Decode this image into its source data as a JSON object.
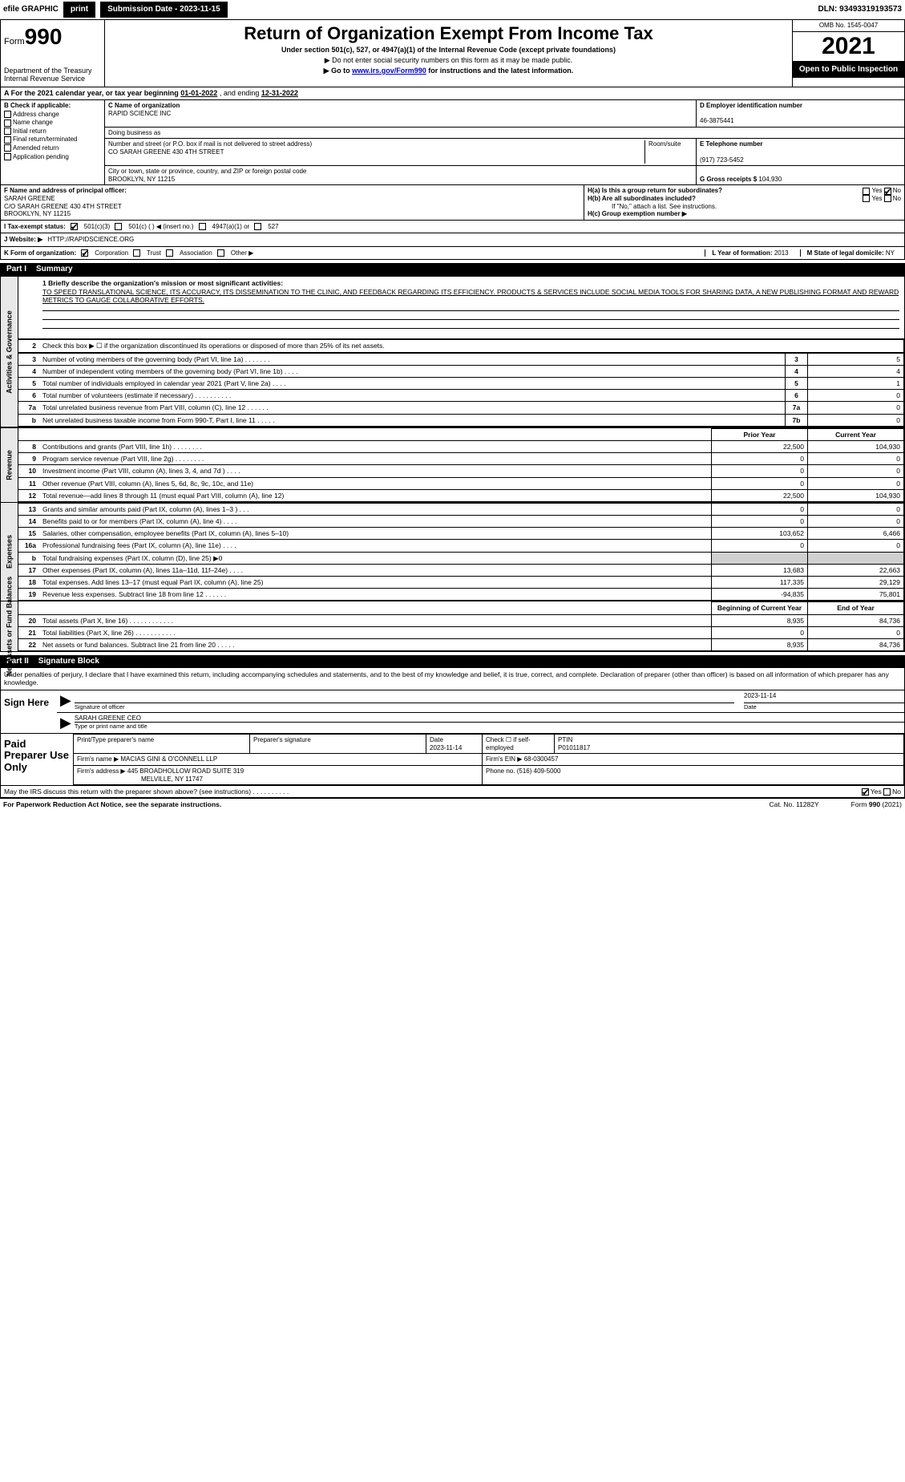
{
  "topbar": {
    "efile_label": "efile GRAPHIC",
    "print_btn": "print",
    "submission_label": "Submission Date - 2023-11-15",
    "dln": "DLN: 93493319193573"
  },
  "header": {
    "form_prefix": "Form",
    "form_number": "990",
    "dept": "Department of the Treasury",
    "irs": "Internal Revenue Service",
    "title": "Return of Organization Exempt From Income Tax",
    "subtitle": "Under section 501(c), 527, or 4947(a)(1) of the Internal Revenue Code (except private foundations)",
    "note1": "▶ Do not enter social security numbers on this form as it may be made public.",
    "note2_prefix": "▶ Go to ",
    "note2_link": "www.irs.gov/Form990",
    "note2_suffix": " for instructions and the latest information.",
    "omb": "OMB No. 1545-0047",
    "year": "2021",
    "open_public": "Open to Public Inspection"
  },
  "period": {
    "label_a": "A For the 2021 calendar year, or tax year beginning ",
    "begin": "01-01-2022",
    "mid": " , and ending ",
    "end": "12-31-2022"
  },
  "sectionB": {
    "label": "B Check if applicable:",
    "items": [
      "Address change",
      "Name change",
      "Initial return",
      "Final return/terminated",
      "Amended return",
      "Application pending"
    ]
  },
  "sectionC": {
    "name_label": "C Name of organization",
    "name": "RAPID SCIENCE INC",
    "dba_label": "Doing business as",
    "dba": "",
    "addr_label": "Number and street (or P.O. box if mail is not delivered to street address)",
    "room_label": "Room/suite",
    "addr": "CO SARAH GREENE 430 4TH STREET",
    "city_label": "City or town, state or province, country, and ZIP or foreign postal code",
    "city": "BROOKLYN, NY  11215"
  },
  "sectionD": {
    "label": "D Employer identification number",
    "ein": "46-3875441"
  },
  "sectionE": {
    "label": "E Telephone number",
    "phone": "(917) 723-5452"
  },
  "sectionG": {
    "label": "G Gross receipts $",
    "amount": "104,930"
  },
  "sectionF": {
    "label": "F Name and address of principal officer:",
    "name": "SARAH GREENE",
    "addr1": "C/O SARAH GREENE 430 4TH STREET",
    "addr2": "BROOKLYN, NY  11215"
  },
  "sectionH": {
    "ha_label": "H(a)  Is this a group return for subordinates?",
    "ha_yes": "Yes",
    "ha_no": "No",
    "hb_label": "H(b)  Are all subordinates included?",
    "hb_yes": "Yes",
    "hb_no": "No",
    "hb_note": "If \"No,\" attach a list. See instructions.",
    "hc_label": "H(c)  Group exemption number ▶"
  },
  "sectionI": {
    "label": "I   Tax-exempt status:",
    "opt1": "501(c)(3)",
    "opt2": "501(c) (    ) ◀ (insert no.)",
    "opt3": "4947(a)(1) or",
    "opt4": "527"
  },
  "sectionJ": {
    "label": "J   Website: ▶",
    "url": "HTTP://RAPIDSCIENCE.ORG"
  },
  "sectionK": {
    "label": "K Form of organization:",
    "opts": [
      "Corporation",
      "Trust",
      "Association",
      "Other ▶"
    ]
  },
  "sectionL": {
    "label": "L Year of formation:",
    "year": "2013"
  },
  "sectionM": {
    "label": "M State of legal domicile:",
    "state": "NY"
  },
  "part1": {
    "header_num": "Part I",
    "header_title": "Summary",
    "line1_label": "1  Briefly describe the organization's mission or most significant activities:",
    "line1_text": "TO SPEED TRANSLATIONAL SCIENCE, ITS ACCURACY, ITS DISSEMINATION TO THE CLINIC, AND FEEDBACK REGARDING ITS EFFICIENCY. PRODUCTS & SERVICES INCLUDE SOCIAL MEDIA TOOLS FOR SHARING DATA, A NEW PUBLISHING FORMAT AND REWARD METRICS TO GAUGE COLLABORATIVE EFFORTS.",
    "vlabel_ag": "Activities & Governance",
    "vlabel_rev": "Revenue",
    "vlabel_exp": "Expenses",
    "vlabel_na": "Net Assets or Fund Balances",
    "line2": "Check this box ▶ ☐  if the organization discontinued its operations or disposed of more than 25% of its net assets.",
    "rows_ag": [
      {
        "n": "3",
        "desc": "Number of voting members of the governing body (Part VI, line 1a)   .    .    .    .    .    .    .",
        "ln": "3",
        "v": "5"
      },
      {
        "n": "4",
        "desc": "Number of independent voting members of the governing body (Part VI, line 1b)    .    .    .    .",
        "ln": "4",
        "v": "4"
      },
      {
        "n": "5",
        "desc": "Total number of individuals employed in calendar year 2021 (Part V, line 2a)   .    .    .    .",
        "ln": "5",
        "v": "1"
      },
      {
        "n": "6",
        "desc": "Total number of volunteers (estimate if necessary)    .    .    .    .    .    .    .    .    .    .",
        "ln": "6",
        "v": "0"
      },
      {
        "n": "7a",
        "desc": "Total unrelated business revenue from Part VIII, column (C), line 12   .    .    .    .    .    .",
        "ln": "7a",
        "v": "0"
      },
      {
        "n": "b",
        "desc": "Net unrelated business taxable income from Form 990-T, Part I, line 11    .    .    .    .    .",
        "ln": "7b",
        "v": "0"
      }
    ],
    "hdr_prior": "Prior Year",
    "hdr_current": "Current Year",
    "rows_rev": [
      {
        "n": "8",
        "desc": "Contributions and grants (Part VIII, line 1h)   .    .    .    .    .    .    .    .",
        "p": "22,500",
        "c": "104,930"
      },
      {
        "n": "9",
        "desc": "Program service revenue (Part VIII, line 2g)   .    .    .    .    .    .    .    .",
        "p": "0",
        "c": "0"
      },
      {
        "n": "10",
        "desc": "Investment income (Part VIII, column (A), lines 3, 4, and 7d )    .    .    .    .",
        "p": "0",
        "c": "0"
      },
      {
        "n": "11",
        "desc": "Other revenue (Part VIII, column (A), lines 5, 6d, 8c, 9c, 10c, and 11e)",
        "p": "0",
        "c": "0"
      },
      {
        "n": "12",
        "desc": "Total revenue—add lines 8 through 11 (must equal Part VIII, column (A), line 12)",
        "p": "22,500",
        "c": "104,930"
      }
    ],
    "rows_exp": [
      {
        "n": "13",
        "desc": "Grants and similar amounts paid (Part IX, column (A), lines 1–3 )   .    .    .",
        "p": "0",
        "c": "0"
      },
      {
        "n": "14",
        "desc": "Benefits paid to or for members (Part IX, column (A), line 4)   .    .    .    .",
        "p": "0",
        "c": "0"
      },
      {
        "n": "15",
        "desc": "Salaries, other compensation, employee benefits (Part IX, column (A), lines 5–10)",
        "p": "103,652",
        "c": "6,466"
      },
      {
        "n": "16a",
        "desc": "Professional fundraising fees (Part IX, column (A), line 11e)   .    .    .    .",
        "p": "0",
        "c": "0"
      },
      {
        "n": "b",
        "desc": "Total fundraising expenses (Part IX, column (D), line 25) ▶0",
        "p": "",
        "c": "",
        "shade": true
      },
      {
        "n": "17",
        "desc": "Other expenses (Part IX, column (A), lines 11a–11d, 11f–24e)   .    .    .    .",
        "p": "13,683",
        "c": "22,663"
      },
      {
        "n": "18",
        "desc": "Total expenses. Add lines 13–17 (must equal Part IX, column (A), line 25)",
        "p": "117,335",
        "c": "29,129"
      },
      {
        "n": "19",
        "desc": "Revenue less expenses. Subtract line 18 from line 12   .    .    .    .    .    .",
        "p": "-94,835",
        "c": "75,801"
      }
    ],
    "hdr_begin": "Beginning of Current Year",
    "hdr_end": "End of Year",
    "rows_na": [
      {
        "n": "20",
        "desc": "Total assets (Part X, line 16)   .    .    .    .    .    .    .    .    .    .    .    .",
        "p": "8,935",
        "c": "84,736"
      },
      {
        "n": "21",
        "desc": "Total liabilities (Part X, line 26)   .    .    .    .    .    .    .    .    .    .    .",
        "p": "0",
        "c": "0"
      },
      {
        "n": "22",
        "desc": "Net assets or fund balances. Subtract line 21 from line 20   .    .    .    .    .",
        "p": "8,935",
        "c": "84,736"
      }
    ]
  },
  "part2": {
    "header_num": "Part II",
    "header_title": "Signature Block",
    "intro": "Under penalties of perjury, I declare that I have examined this return, including accompanying schedules and statements, and to the best of my knowledge and belief, it is true, correct, and complete. Declaration of preparer (other than officer) is based on all information of which preparer has any knowledge.",
    "sign_here": "Sign Here",
    "sig_officer_label": "Signature of officer",
    "sig_date": "2023-11-14",
    "date_label": "Date",
    "officer_name": "SARAH GREENE CEO",
    "officer_name_label": "Type or print name and title",
    "paid_prep": "Paid Preparer Use Only",
    "prep_name_label": "Print/Type preparer's name",
    "prep_sig_label": "Preparer's signature",
    "prep_date_label": "Date",
    "prep_date": "2023-11-14",
    "prep_check_label": "Check ☐ if self-employed",
    "ptin_label": "PTIN",
    "ptin": "P01011817",
    "firm_name_label": "Firm's name    ▶",
    "firm_name": "MACIAS GINI & O'CONNELL LLP",
    "firm_ein_label": "Firm's EIN ▶",
    "firm_ein": "68-0300457",
    "firm_addr_label": "Firm's address ▶",
    "firm_addr1": "445 BROADHOLLOW ROAD SUITE 319",
    "firm_addr2": "MELVILLE, NY  11747",
    "firm_phone_label": "Phone no.",
    "firm_phone": "(516) 409-5000",
    "may_discuss": "May the IRS discuss this return with the preparer shown above? (see instructions)   .    .    .    .    .    .    .    .    .    .",
    "yes": "Yes",
    "no": "No"
  },
  "footer": {
    "left": "For Paperwork Reduction Act Notice, see the separate instructions.",
    "mid": "Cat. No. 11282Y",
    "right_prefix": "Form ",
    "right_form": "990",
    "right_suffix": " (2021)"
  }
}
